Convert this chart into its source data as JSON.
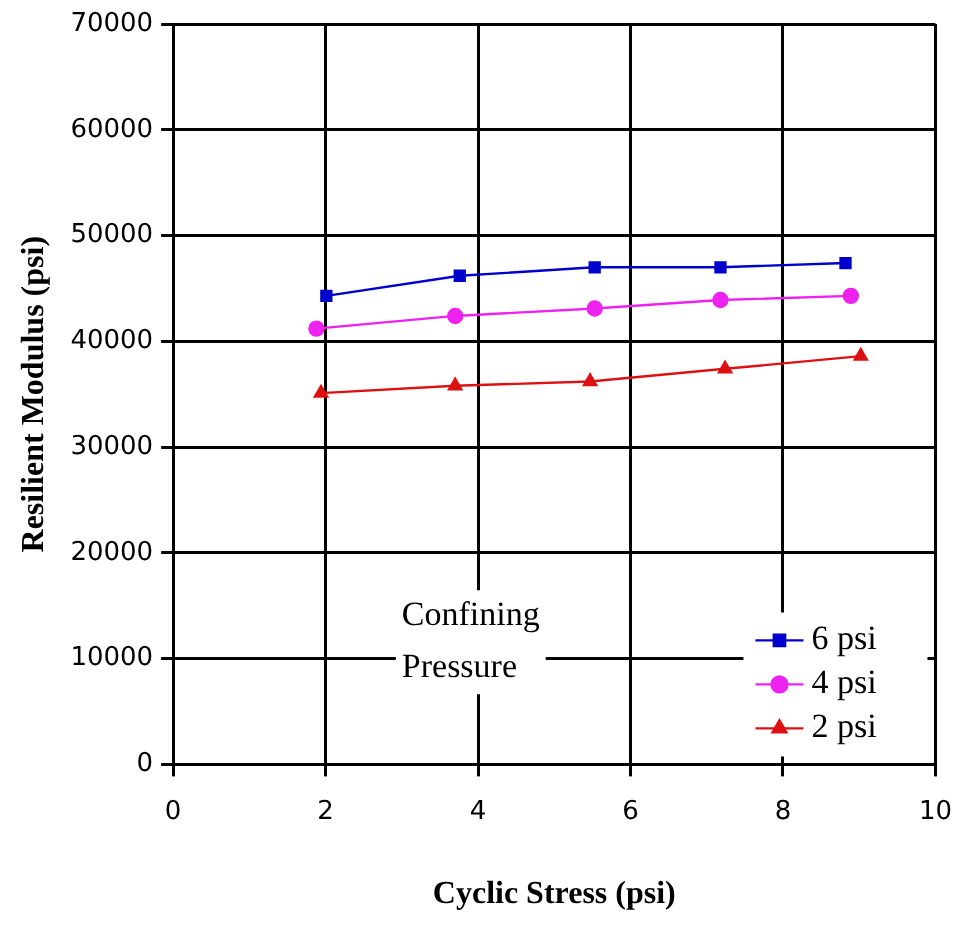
{
  "chart_data": {
    "type": "line",
    "xlabel": "Cyclic Stress (psi)",
    "ylabel": "Resilient Modulus (psi)",
    "xlim": [
      0,
      10
    ],
    "xticks": [
      0,
      2,
      4,
      6,
      8,
      10
    ],
    "ylim": [
      0,
      70000
    ],
    "yticks": [
      0,
      10000,
      20000,
      30000,
      40000,
      50000,
      60000,
      70000
    ],
    "grid": true,
    "legend": "bottom right",
    "annotations": [
      "Confining Pressure"
    ],
    "series": [
      {
        "name": "6 psi",
        "color": "#0000cc",
        "marker": "square",
        "x": [
          2.01,
          3.76,
          5.53,
          7.18,
          8.82
        ],
        "values": [
          44300,
          46200,
          47000,
          47000,
          47400
        ]
      },
      {
        "name": "4 psi",
        "color": "#ee22ee",
        "marker": "circle",
        "x": [
          1.88,
          3.7,
          5.53,
          7.18,
          8.89
        ],
        "values": [
          41200,
          42400,
          43100,
          43900,
          44300
        ]
      },
      {
        "name": "2 psi",
        "color": "#dd1111",
        "marker": "triangle",
        "x": [
          1.94,
          3.7,
          5.47,
          7.24,
          9.02
        ],
        "values": [
          35100,
          35800,
          36200,
          37400,
          38600
        ]
      }
    ]
  }
}
